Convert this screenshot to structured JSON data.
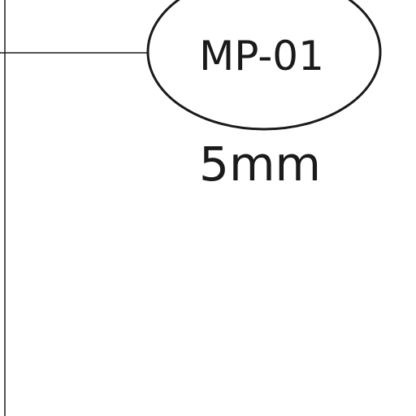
{
  "drawing": {
    "callout": {
      "label": "MP-01",
      "dimension": "5mm"
    },
    "line_color": "#1a1a1a",
    "background": "#ffffff"
  }
}
